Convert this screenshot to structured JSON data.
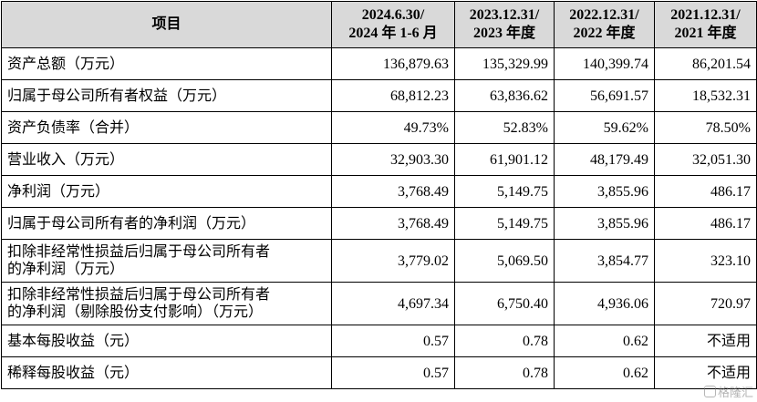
{
  "table": {
    "headers": [
      [
        "项目"
      ],
      [
        "2024.6.30/",
        "2024 年 1-6 月"
      ],
      [
        "2023.12.31/",
        "2023 年度"
      ],
      [
        "2022.12.31/",
        "2022 年度"
      ],
      [
        "2021.12.31/",
        "2021 年度"
      ]
    ],
    "rows": [
      {
        "label": [
          "资产总额（万元）"
        ],
        "values": [
          "136,879.63",
          "135,329.99",
          "140,399.74",
          "86,201.54"
        ]
      },
      {
        "label": [
          "归属于母公司所有者权益（万元）"
        ],
        "values": [
          "68,812.23",
          "63,836.62",
          "56,691.57",
          "18,532.31"
        ]
      },
      {
        "label": [
          "资产负债率（合并）"
        ],
        "values": [
          "49.73%",
          "52.83%",
          "59.62%",
          "78.50%"
        ]
      },
      {
        "label": [
          "营业收入（万元）"
        ],
        "values": [
          "32,903.30",
          "61,901.12",
          "48,179.49",
          "32,051.30"
        ]
      },
      {
        "label": [
          "净利润（万元）"
        ],
        "values": [
          "3,768.49",
          "5,149.75",
          "3,855.96",
          "486.17"
        ]
      },
      {
        "label": [
          "归属于母公司所有者的净利润（万元）"
        ],
        "values": [
          "3,768.49",
          "5,149.75",
          "3,855.96",
          "486.17"
        ]
      },
      {
        "label": [
          "扣除非经常性损益后归属于母公司所有者",
          "的净利润（万元）"
        ],
        "values": [
          "3,779.02",
          "5,069.50",
          "3,854.77",
          "323.10"
        ]
      },
      {
        "label": [
          "扣除非经常性损益后归属于母公司所有者",
          "的净利润（剔除股份支付影响）（万元）"
        ],
        "values": [
          "4,697.34",
          "6,750.40",
          "4,936.06",
          "720.97"
        ]
      },
      {
        "label": [
          "基本每股收益（元）"
        ],
        "values": [
          "0.57",
          "0.78",
          "0.62",
          "不适用"
        ]
      },
      {
        "label": [
          "稀释每股收益（元）"
        ],
        "values": [
          "0.57",
          "0.78",
          "0.62",
          "不适用"
        ]
      }
    ]
  },
  "watermark": {
    "text": "格隆汇",
    "icon": "app-logo-icon"
  }
}
